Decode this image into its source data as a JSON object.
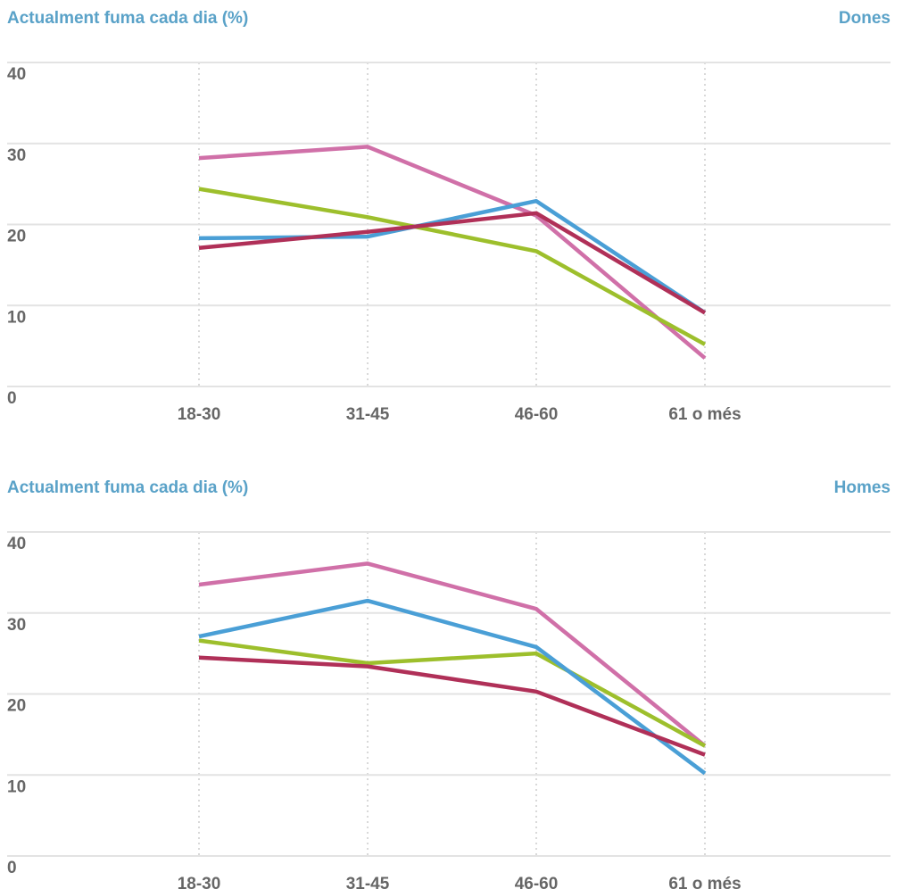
{
  "chart_data": [
    {
      "type": "line",
      "title": "Actualment fuma cada dia (%)",
      "group": "Dones",
      "categories": [
        "18-30",
        "31-45",
        "46-60",
        "61 o més"
      ],
      "yticks": [
        0,
        10,
        20,
        30,
        40
      ],
      "ylim": [
        0,
        40
      ],
      "grid": true,
      "series": [
        {
          "color": "#d070a8",
          "values": [
            28.2,
            29.6,
            21.1,
            3.5
          ]
        },
        {
          "color": "#9dbf2c",
          "values": [
            24.4,
            20.9,
            16.7,
            5.2
          ]
        },
        {
          "color": "#4a9fd6",
          "values": [
            18.3,
            18.5,
            22.9,
            9.1
          ]
        },
        {
          "color": "#b03058",
          "values": [
            17.1,
            19.1,
            21.4,
            9.1
          ]
        }
      ]
    },
    {
      "type": "line",
      "title": "Actualment fuma cada dia (%)",
      "group": "Homes",
      "categories": [
        "18-30",
        "31-45",
        "46-60",
        "61 o més"
      ],
      "yticks": [
        0,
        10,
        20,
        30,
        40
      ],
      "ylim": [
        0,
        40
      ],
      "grid": true,
      "series": [
        {
          "color": "#d070a8",
          "values": [
            33.5,
            36.1,
            30.5,
            13.6
          ]
        },
        {
          "color": "#9dbf2c",
          "values": [
            26.6,
            23.8,
            25.0,
            13.6
          ]
        },
        {
          "color": "#4a9fd6",
          "values": [
            27.1,
            31.5,
            25.8,
            10.2
          ]
        },
        {
          "color": "#b03058",
          "values": [
            24.5,
            23.4,
            20.3,
            12.5
          ]
        }
      ]
    }
  ]
}
